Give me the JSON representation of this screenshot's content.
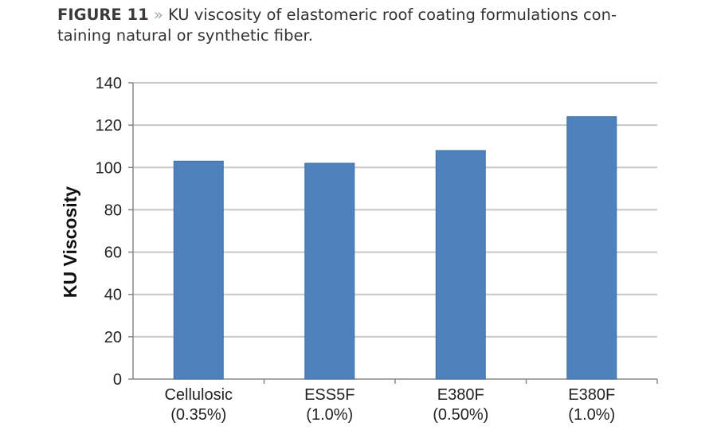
{
  "caption": {
    "figure": "FIGURE 11",
    "separator": "»",
    "text": "KU viscosity of elastomeric roof coating formulations con-taining natural or synthetic fiber."
  },
  "chart_data": {
    "type": "bar",
    "title": "",
    "xlabel": "",
    "ylabel": "KU Viscosity",
    "ylim": [
      0,
      140
    ],
    "yticks": [
      0,
      20,
      40,
      60,
      80,
      100,
      120,
      140
    ],
    "grid": true,
    "categories": [
      [
        "Cellulosic",
        "(0.35%)"
      ],
      [
        "ESS5F",
        "(1.0%)"
      ],
      [
        "E380F",
        "(0.50%)"
      ],
      [
        "E380F",
        "(1.0%)"
      ]
    ],
    "values": [
      103,
      102,
      108,
      124
    ],
    "bar_color": "#4f81bd"
  }
}
